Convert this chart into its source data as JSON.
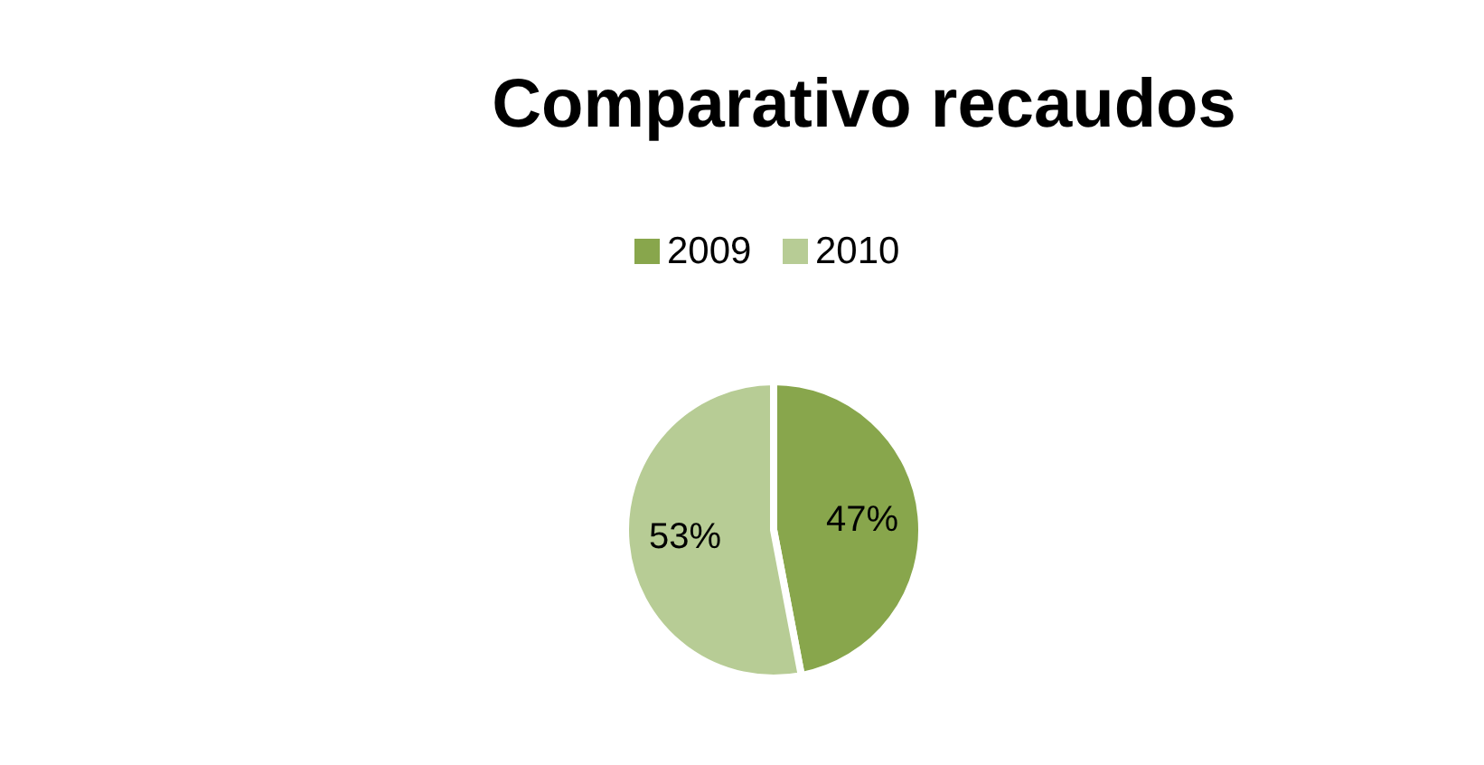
{
  "chart_data": {
    "type": "pie",
    "title": "Comparativo recaudos",
    "categories": [
      "2009",
      "2010"
    ],
    "values": [
      47,
      53
    ],
    "value_labels": [
      "47%",
      "53%"
    ],
    "colors": [
      "#88a64c",
      "#b7cc95"
    ],
    "legend": "top"
  }
}
